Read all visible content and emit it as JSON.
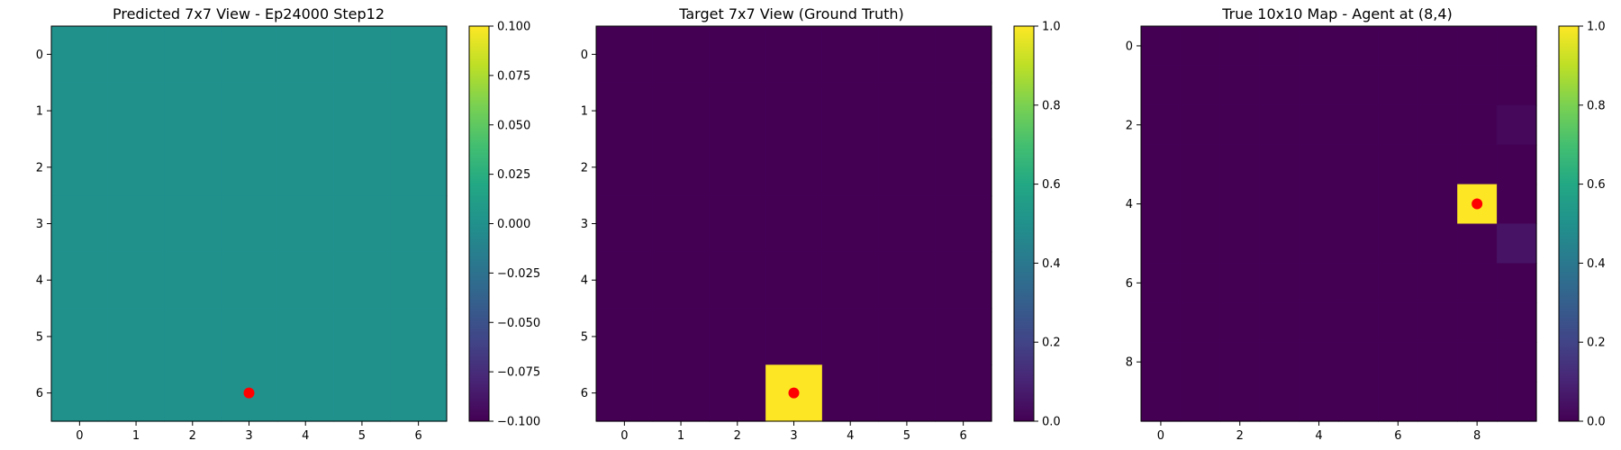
{
  "colormap": "viridis",
  "marker_color": "#ff0000",
  "chart_data": [
    {
      "type": "heatmap",
      "title": "Predicted 7x7 View - Ep24000 Step12",
      "rows": 7,
      "cols": 7,
      "x_ticks": [
        0,
        1,
        2,
        3,
        4,
        5,
        6
      ],
      "y_ticks": [
        0,
        1,
        2,
        3,
        4,
        5,
        6
      ],
      "x_tick_labels": [
        "0",
        "1",
        "2",
        "3",
        "4",
        "5",
        "6"
      ],
      "y_tick_labels": [
        "0",
        "1",
        "2",
        "3",
        "4",
        "5",
        "6"
      ],
      "vmin": -0.1,
      "vmax": 0.1,
      "colorbar_ticks": [
        -0.1,
        -0.075,
        -0.05,
        -0.025,
        0,
        0.025,
        0.05,
        0.075,
        0.1
      ],
      "colorbar_tick_labels": [
        "−0.100",
        "−0.075",
        "−0.050",
        "−0.025",
        "0.000",
        "0.025",
        "0.050",
        "0.075",
        "0.100"
      ],
      "cells": [],
      "default_value": 0,
      "marker": {
        "x": 3,
        "y": 6
      }
    },
    {
      "type": "heatmap",
      "title": "Target 7x7 View (Ground Truth)",
      "rows": 7,
      "cols": 7,
      "x_ticks": [
        0,
        1,
        2,
        3,
        4,
        5,
        6
      ],
      "y_ticks": [
        0,
        1,
        2,
        3,
        4,
        5,
        6
      ],
      "x_tick_labels": [
        "0",
        "1",
        "2",
        "3",
        "4",
        "5",
        "6"
      ],
      "y_tick_labels": [
        "0",
        "1",
        "2",
        "3",
        "4",
        "5",
        "6"
      ],
      "vmin": 0,
      "vmax": 1,
      "colorbar_ticks": [
        0,
        0.2,
        0.4,
        0.6,
        0.8,
        1
      ],
      "colorbar_tick_labels": [
        "0.0",
        "0.2",
        "0.4",
        "0.6",
        "0.8",
        "1.0"
      ],
      "cells": [
        {
          "x": 3,
          "y": 6,
          "value": 1
        }
      ],
      "default_value": 0,
      "marker": {
        "x": 3,
        "y": 6
      }
    },
    {
      "type": "heatmap",
      "title": "True 10x10 Map - Agent at (8,4)",
      "rows": 10,
      "cols": 10,
      "x_ticks": [
        0,
        2,
        4,
        6,
        8
      ],
      "y_ticks": [
        0,
        2,
        4,
        6,
        8
      ],
      "x_tick_labels": [
        "0",
        "2",
        "4",
        "6",
        "8"
      ],
      "y_tick_labels": [
        "0",
        "2",
        "4",
        "6",
        "8"
      ],
      "vmin": 0,
      "vmax": 1,
      "colorbar_ticks": [
        0,
        0.2,
        0.4,
        0.6,
        0.8,
        1
      ],
      "colorbar_tick_labels": [
        "0.0",
        "0.2",
        "0.4",
        "0.6",
        "0.8",
        "1.0"
      ],
      "cells": [
        {
          "x": 8,
          "y": 4,
          "value": 1
        },
        {
          "x": 9,
          "y": 5,
          "value": 0.05
        },
        {
          "x": 9,
          "y": 2,
          "value": 0.02
        }
      ],
      "default_value": 0,
      "marker": {
        "x": 8,
        "y": 4
      }
    }
  ]
}
